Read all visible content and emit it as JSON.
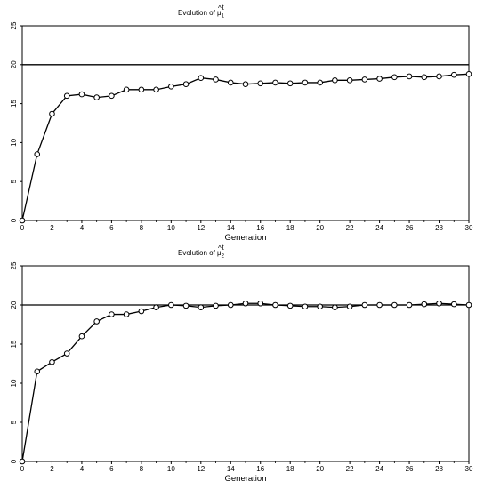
{
  "chart_data": [
    {
      "type": "line",
      "title_prefix": "Evolution of ",
      "title_symbol": "μ",
      "title_hat": "^",
      "title_superscript": "t",
      "title_subscript": "1",
      "xlabel": "Generation",
      "ylabel": "",
      "xlim": [
        0,
        30
      ],
      "ylim": [
        0,
        25
      ],
      "xticks": [
        "0",
        "2",
        "4",
        "6",
        "8",
        "10",
        "12",
        "14",
        "16",
        "18",
        "20",
        "22",
        "24",
        "26",
        "28",
        "30"
      ],
      "yticks": [
        "0",
        "5",
        "10",
        "15",
        "20",
        "25"
      ],
      "reference_line": 20,
      "grid": false,
      "x": [
        0,
        1,
        2,
        3,
        4,
        5,
        6,
        7,
        8,
        9,
        10,
        11,
        12,
        13,
        14,
        15,
        16,
        17,
        18,
        19,
        20,
        21,
        22,
        23,
        24,
        25,
        26,
        27,
        28,
        29,
        30
      ],
      "values": [
        0,
        8.5,
        13.7,
        16.0,
        16.2,
        15.8,
        16.0,
        16.8,
        16.8,
        16.8,
        17.2,
        17.5,
        18.3,
        18.1,
        17.7,
        17.5,
        17.6,
        17.7,
        17.6,
        17.7,
        17.7,
        18.0,
        18.0,
        18.1,
        18.2,
        18.4,
        18.5,
        18.4,
        18.5,
        18.7,
        18.8
      ]
    },
    {
      "type": "line",
      "title_prefix": "Evolution of ",
      "title_symbol": "μ",
      "title_hat": "^",
      "title_superscript": "t",
      "title_subscript": "2",
      "xlabel": "Generation",
      "ylabel": "",
      "xlim": [
        0,
        30
      ],
      "ylim": [
        0,
        25
      ],
      "xticks": [
        "0",
        "2",
        "4",
        "6",
        "8",
        "10",
        "12",
        "14",
        "16",
        "18",
        "20",
        "22",
        "24",
        "26",
        "28",
        "30"
      ],
      "yticks": [
        "0",
        "5",
        "10",
        "15",
        "20",
        "25"
      ],
      "reference_line": 20,
      "grid": false,
      "x": [
        0,
        1,
        2,
        3,
        4,
        5,
        6,
        7,
        8,
        9,
        10,
        11,
        12,
        13,
        14,
        15,
        16,
        17,
        18,
        19,
        20,
        21,
        22,
        23,
        24,
        25,
        26,
        27,
        28,
        29,
        30
      ],
      "values": [
        0,
        11.5,
        12.7,
        13.8,
        16.0,
        17.9,
        18.8,
        18.8,
        19.2,
        19.7,
        20.0,
        19.9,
        19.7,
        19.9,
        20.0,
        20.2,
        20.2,
        20.0,
        19.9,
        19.8,
        19.8,
        19.7,
        19.8,
        20.0,
        20.0,
        20.0,
        20.0,
        20.1,
        20.2,
        20.1,
        20.0
      ]
    }
  ]
}
